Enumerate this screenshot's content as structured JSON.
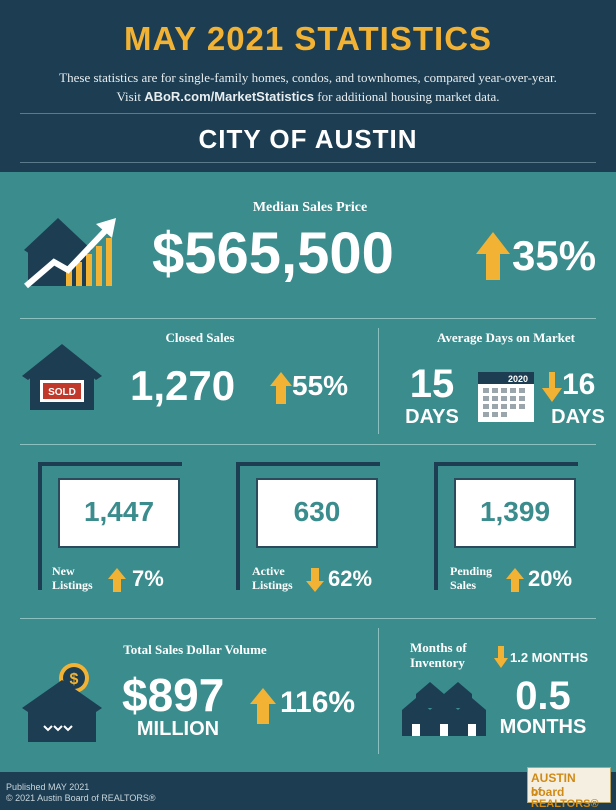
{
  "header": {
    "title": "MAY 2021 STATISTICS",
    "subtitle_line1": "These statistics are for single-family homes, condos, and townhomes, compared year-over-year.",
    "subtitle_visit": "Visit",
    "subtitle_link": "ABoR.com/MarketStatistics",
    "subtitle_rest": "for additional housing market data.",
    "city": "CITY OF AUSTIN"
  },
  "median": {
    "label": "Median Sales Price",
    "value": "$565,500",
    "change": "35%"
  },
  "closed": {
    "label": "Closed Sales",
    "sign": "SOLD",
    "value": "1,270",
    "change": "55%"
  },
  "dom": {
    "label": "Average Days on Market",
    "value": "15",
    "unit": "DAYS",
    "calendar_year": "2020",
    "prev_value": "16",
    "prev_unit": "DAYS"
  },
  "listings": {
    "new": {
      "value": "1,447",
      "label1": "New",
      "label2": "Listings",
      "change": "7%"
    },
    "active": {
      "value": "630",
      "label1": "Active",
      "label2": "Listings",
      "change": "62%"
    },
    "pending": {
      "value": "1,399",
      "label1": "Pending",
      "label2": "Sales",
      "change": "20%"
    }
  },
  "volume": {
    "label": "Total Sales Dollar Volume",
    "value": "$897",
    "unit": "MILLION",
    "change": "116%"
  },
  "inventory": {
    "label1": "Months of",
    "label2": "Inventory",
    "prev": "1.2 MONTHS",
    "value": "0.5",
    "unit": "MONTHS"
  },
  "footer": {
    "published": "Published MAY 2021",
    "copyright": "© 2021 Austin Board of REALTORS®",
    "logo1": "AUSTIN board",
    "logo2": "of REALTORS®"
  },
  "colors": {
    "gold": "#f2b233",
    "teal": "#3b8c8d",
    "navy": "#1d3d52"
  }
}
